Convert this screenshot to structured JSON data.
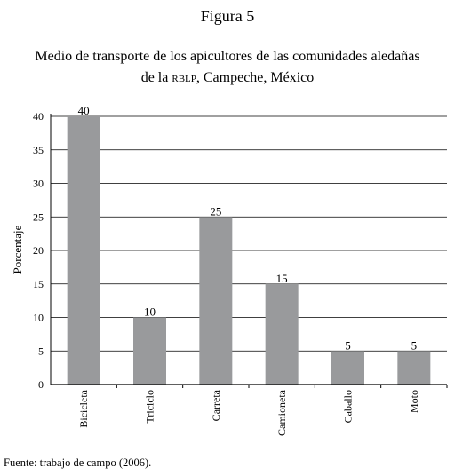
{
  "figure_label": "Figura 5",
  "title_part1": "Medio de transporte de los apicultores de las comunidades aledañas",
  "title_part2_pre": "de la",
  "title_sc": "RBLP",
  "title_part2_post": ", Campeche, México",
  "source": "Fuente: trabajo de campo (2006).",
  "colors": {
    "bar": "#999a9c",
    "grid": "#000000",
    "axis": "#000000"
  },
  "chart_data": {
    "type": "bar",
    "categories": [
      "Bicicleta",
      "Triciclo",
      "Carreta",
      "Camioneta",
      "Caballo",
      "Moto"
    ],
    "values": [
      40,
      10,
      25,
      15,
      5,
      5
    ],
    "data_labels": [
      "40",
      "10",
      "25",
      "15",
      "5",
      "5"
    ],
    "ylabel": "Porcentaje",
    "ylim": [
      0,
      40
    ],
    "yticks": [
      0,
      5,
      10,
      15,
      20,
      25,
      30,
      35,
      40
    ],
    "grid": true,
    "legend": "none"
  }
}
